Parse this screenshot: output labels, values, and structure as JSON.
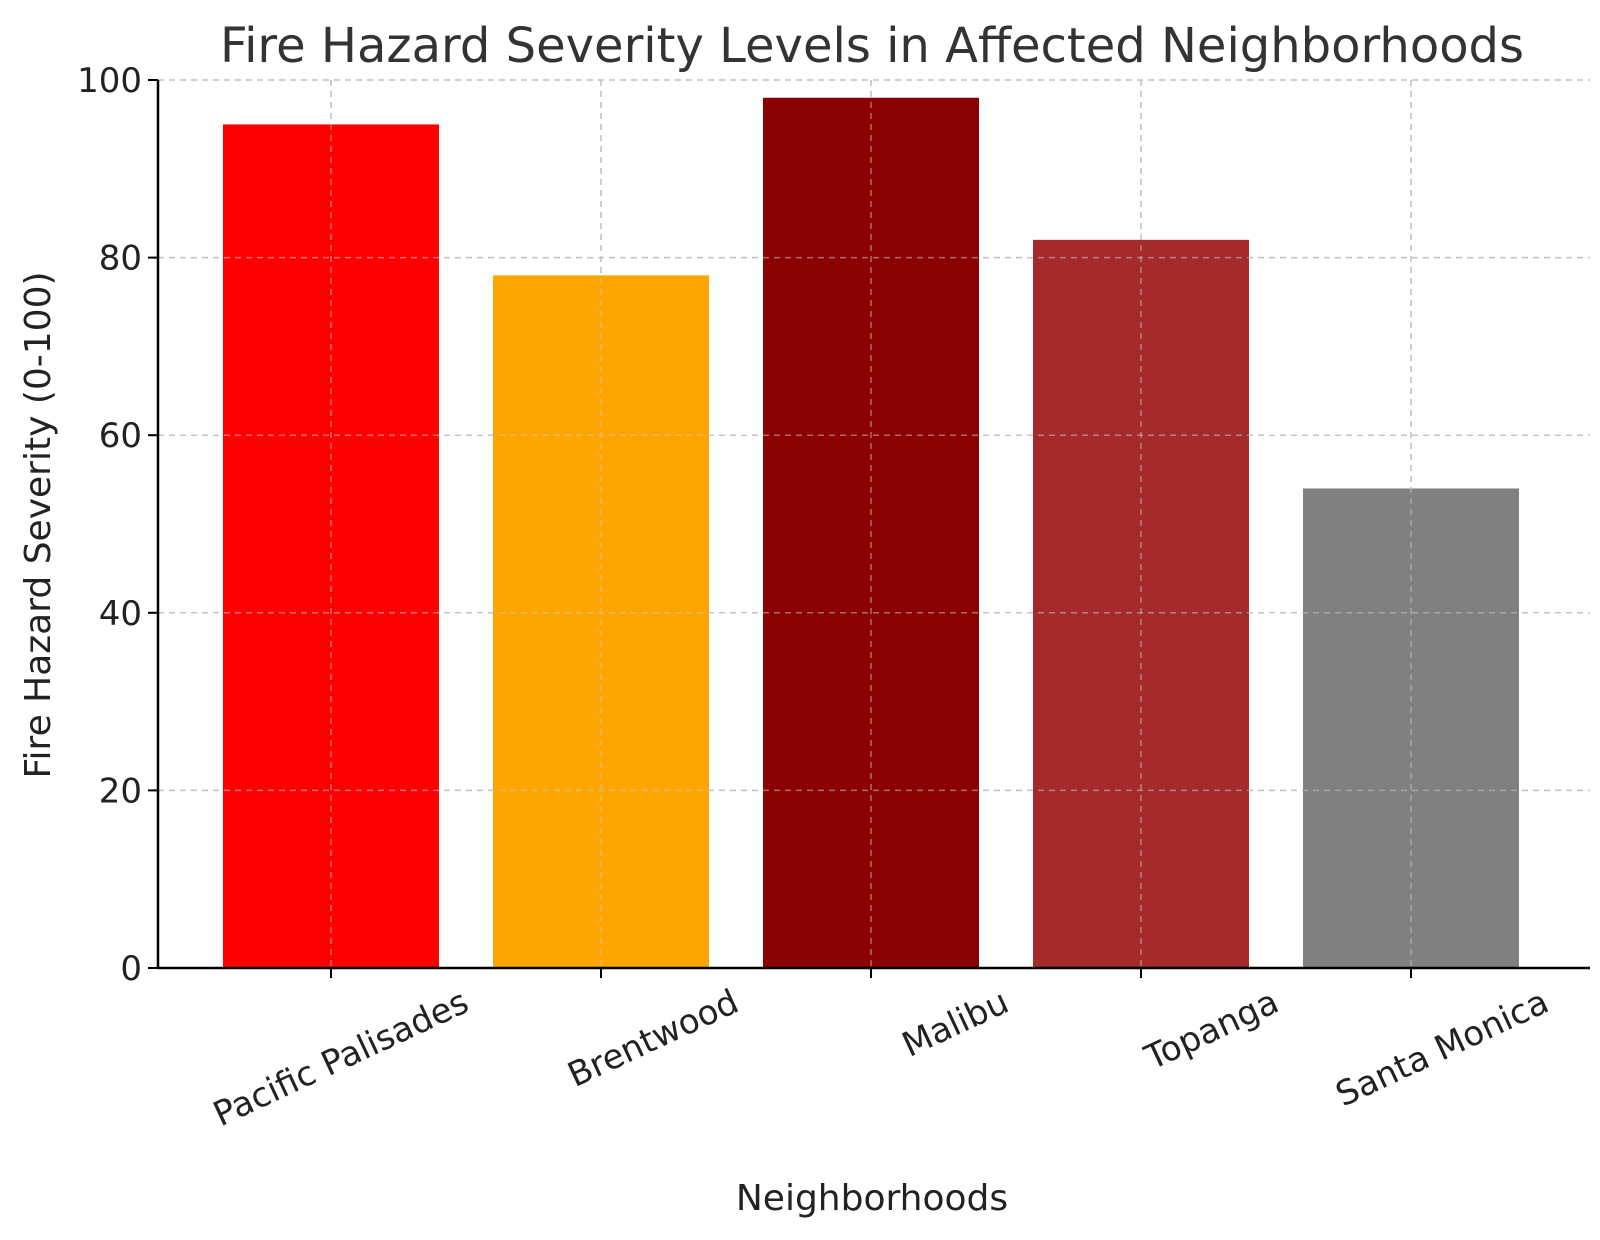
{
  "chart_data": {
    "type": "bar",
    "title": "Fire Hazard Severity Levels in Affected Neighborhoods",
    "xlabel": "Neighborhoods",
    "ylabel": "Fire Hazard Severity (0-100)",
    "categories": [
      "Pacific Palisades",
      "Brentwood",
      "Malibu",
      "Topanga",
      "Santa Monica"
    ],
    "values": [
      95,
      78,
      98,
      82,
      54
    ],
    "colors": [
      "#ff0000",
      "#ffa500",
      "#8b0000",
      "#a52a2a",
      "#808080"
    ],
    "ylim": [
      0,
      100
    ],
    "yticks": [
      "0",
      "20",
      "40",
      "60",
      "80",
      "100"
    ],
    "grid": true,
    "grid_style": "dashed"
  }
}
